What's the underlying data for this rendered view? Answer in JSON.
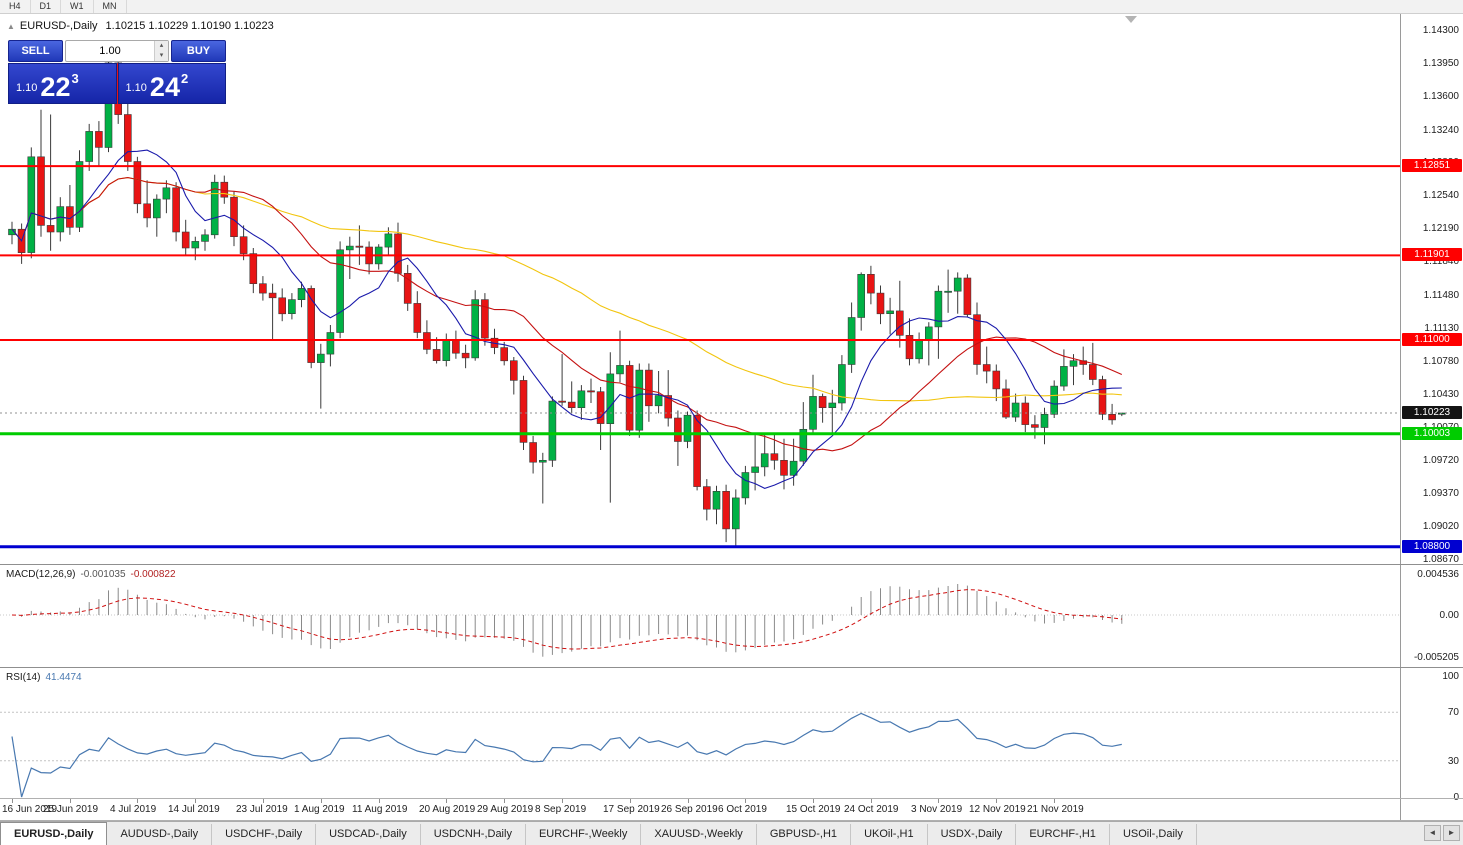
{
  "toolbar": {
    "timeframes": [
      "H4",
      "D1",
      "W1",
      "MN"
    ]
  },
  "chart_header": {
    "collapse_icon": "▲",
    "symbol": "EURUSD-,Daily",
    "ohlc": "1.10215 1.10229 1.10190 1.10223"
  },
  "trade_panel": {
    "sell_label": "SELL",
    "buy_label": "BUY",
    "volume": "1.00",
    "spinner_up_icon": "▴",
    "spinner_down_icon": "▾",
    "bid": {
      "main": "1.10",
      "big": "22",
      "pip": "3"
    },
    "ask": {
      "main": "1.10",
      "big": "24",
      "pip": "2"
    }
  },
  "macd_panel": {
    "name": "MACD(12,26,9)",
    "value_main": "-0.001035",
    "value_signal": "-0.000822",
    "axis_labels": [
      "0.004536",
      "0.00",
      "-0.005205"
    ]
  },
  "rsi_panel": {
    "name": "RSI(14)",
    "value": "41.4474",
    "axis_labels": [
      "100",
      "70",
      "30",
      "0"
    ]
  },
  "tab_bar": {
    "active_index": 0,
    "scroll_left_icon": "◄",
    "scroll_right_icon": "►",
    "tabs": [
      "EURUSD-,Daily",
      "AUDUSD-,Daily",
      "USDCHF-,Daily",
      "USDCAD-,Daily",
      "USDCNH-,Daily",
      "EURCHF-,Weekly",
      "XAUUSD-,Weekly",
      "GBPUSD-,H1",
      "UKOil-,H1",
      "USDX-,Daily",
      "EURCHF-,H1",
      "USOil-,Daily"
    ]
  },
  "chart_data": {
    "type": "candlestick",
    "symbol": "EURUSD-",
    "timeframe": "Daily",
    "colors": {
      "up": "#00b145",
      "down": "#e81414",
      "wick": "#3a3a3a",
      "ma_fast": "#1a1aab",
      "ma_mid": "#c41111",
      "ma_slow": "#f2c50f",
      "macd_hist": "#8a8a8a",
      "macd_signal": "#d01010",
      "rsi_line": "#4878b0",
      "current_line": "#909090"
    },
    "price_axis": {
      "ticks": [
        "1.14300",
        "1.13950",
        "1.13600",
        "1.13240",
        "1.12890",
        "1.12540",
        "1.12190",
        "1.11840",
        "1.11480",
        "1.11130",
        "1.10780",
        "1.10430",
        "1.10070",
        "1.09720",
        "1.09370",
        "1.09020",
        "1.08670"
      ]
    },
    "hlines": [
      {
        "value": 1.12851,
        "label": "1.12851",
        "color": "#ff0000",
        "width": 2
      },
      {
        "value": 1.11901,
        "label": "1.11901",
        "color": "#ff0000",
        "width": 2
      },
      {
        "value": 1.11,
        "label": "1.11000",
        "color": "#ff0000",
        "width": 2
      },
      {
        "value": 1.10003,
        "label": "1.10003",
        "color": "#00cc00",
        "width": 3
      },
      {
        "value": 1.088,
        "label": "1.08800",
        "color": "#0000d0",
        "width": 3
      }
    ],
    "current_price": {
      "value": 1.10223,
      "label": "1.10223"
    },
    "moving_averages": [
      {
        "period": 50,
        "color": "#f2c50f"
      },
      {
        "period": 20,
        "color": "#c41111"
      },
      {
        "period": 8,
        "color": "#1a1aab"
      }
    ],
    "macd": {
      "fast": 12,
      "slow": 26,
      "signal": 9
    },
    "rsi": {
      "period": 14,
      "levels": [
        70,
        30
      ]
    },
    "date_labels": [
      {
        "text": "16 Jun 2019",
        "index": 0
      },
      {
        "text": "25 Jun 2019",
        "index": 6
      },
      {
        "text": "4 Jul 2019",
        "index": 13
      },
      {
        "text": "14 Jul 2019",
        "index": 19
      },
      {
        "text": "23 Jul 2019",
        "index": 26
      },
      {
        "text": "1 Aug 2019",
        "index": 32
      },
      {
        "text": "11 Aug 2019",
        "index": 38
      },
      {
        "text": "20 Aug 2019",
        "index": 45
      },
      {
        "text": "29 Aug 2019",
        "index": 51
      },
      {
        "text": "8 Sep 2019",
        "index": 57
      },
      {
        "text": "17 Sep 2019",
        "index": 64
      },
      {
        "text": "26 Sep 2019",
        "index": 70
      },
      {
        "text": "6 Oct 2019",
        "index": 76
      },
      {
        "text": "15 Oct 2019",
        "index": 83
      },
      {
        "text": "24 Oct 2019",
        "index": 89
      },
      {
        "text": "3 Nov 2019",
        "index": 96
      },
      {
        "text": "12 Nov 2019",
        "index": 102
      },
      {
        "text": "21 Nov 2019",
        "index": 108
      }
    ],
    "ohlc": [
      [
        1.1212,
        1.1226,
        1.1202,
        1.1218
      ],
      [
        1.1218,
        1.1224,
        1.1181,
        1.1193
      ],
      [
        1.1193,
        1.1305,
        1.1187,
        1.1295
      ],
      [
        1.1295,
        1.1345,
        1.121,
        1.1222
      ],
      [
        1.1222,
        1.134,
        1.1195,
        1.1215
      ],
      [
        1.1215,
        1.1252,
        1.1205,
        1.1242
      ],
      [
        1.1242,
        1.1265,
        1.1212,
        1.122
      ],
      [
        1.122,
        1.1302,
        1.1215,
        1.129
      ],
      [
        1.129,
        1.133,
        1.128,
        1.1322
      ],
      [
        1.1322,
        1.1333,
        1.1285,
        1.1305
      ],
      [
        1.1305,
        1.1412,
        1.13,
        1.1395
      ],
      [
        1.1395,
        1.1407,
        1.133,
        1.134
      ],
      [
        1.134,
        1.136,
        1.128,
        1.129
      ],
      [
        1.129,
        1.1295,
        1.1235,
        1.1245
      ],
      [
        1.1245,
        1.127,
        1.122,
        1.123
      ],
      [
        1.123,
        1.1255,
        1.121,
        1.125
      ],
      [
        1.125,
        1.127,
        1.1235,
        1.1262
      ],
      [
        1.1262,
        1.1268,
        1.1205,
        1.1215
      ],
      [
        1.1215,
        1.1228,
        1.119,
        1.1198
      ],
      [
        1.1198,
        1.121,
        1.1185,
        1.1205
      ],
      [
        1.1205,
        1.1218,
        1.1195,
        1.1212
      ],
      [
        1.1212,
        1.1276,
        1.1208,
        1.1268
      ],
      [
        1.1268,
        1.1275,
        1.1245,
        1.1252
      ],
      [
        1.1252,
        1.1258,
        1.12,
        1.121
      ],
      [
        1.121,
        1.1222,
        1.1185,
        1.1192
      ],
      [
        1.1192,
        1.1198,
        1.115,
        1.116
      ],
      [
        1.116,
        1.1168,
        1.1142,
        1.115
      ],
      [
        1.115,
        1.116,
        1.1101,
        1.1145
      ],
      [
        1.1145,
        1.1155,
        1.112,
        1.1128
      ],
      [
        1.1128,
        1.115,
        1.1122,
        1.1143
      ],
      [
        1.1143,
        1.1162,
        1.1135,
        1.1155
      ],
      [
        1.1155,
        1.1158,
        1.107,
        1.1076
      ],
      [
        1.1076,
        1.1096,
        1.1027,
        1.1085
      ],
      [
        1.1085,
        1.1116,
        1.1072,
        1.1108
      ],
      [
        1.1108,
        1.1205,
        1.1102,
        1.1196
      ],
      [
        1.1196,
        1.121,
        1.1165,
        1.12
      ],
      [
        1.12,
        1.1222,
        1.118,
        1.1199
      ],
      [
        1.1199,
        1.1205,
        1.117,
        1.1181
      ],
      [
        1.1181,
        1.1202,
        1.1175,
        1.1199
      ],
      [
        1.1199,
        1.122,
        1.119,
        1.1213
      ],
      [
        1.1213,
        1.1225,
        1.1162,
        1.1171
      ],
      [
        1.1171,
        1.118,
        1.1131,
        1.1139
      ],
      [
        1.1139,
        1.1152,
        1.1102,
        1.1108
      ],
      [
        1.1108,
        1.1121,
        1.1085,
        1.109
      ],
      [
        1.109,
        1.1103,
        1.1075,
        1.1078
      ],
      [
        1.1078,
        1.1107,
        1.1072,
        1.11
      ],
      [
        1.11,
        1.111,
        1.108,
        1.1086
      ],
      [
        1.1086,
        1.1095,
        1.107,
        1.1081
      ],
      [
        1.1081,
        1.1153,
        1.1078,
        1.1143
      ],
      [
        1.1143,
        1.115,
        1.1094,
        1.1102
      ],
      [
        1.1102,
        1.1112,
        1.1085,
        1.1092
      ],
      [
        1.1092,
        1.1098,
        1.1073,
        1.1078
      ],
      [
        1.1078,
        1.1082,
        1.1042,
        1.1057
      ],
      [
        1.1057,
        1.1062,
        1.0983,
        1.0991
      ],
      [
        1.0991,
        1.0998,
        1.0958,
        1.097
      ],
      [
        1.097,
        1.098,
        1.0926,
        1.0972
      ],
      [
        1.0972,
        1.104,
        1.0965,
        1.1035
      ],
      [
        1.1035,
        1.1085,
        1.103,
        1.1034
      ],
      [
        1.1034,
        1.1056,
        1.1022,
        1.1028
      ],
      [
        1.1028,
        1.1052,
        1.1015,
        1.1046
      ],
      [
        1.1046,
        1.1059,
        1.1033,
        1.1045
      ],
      [
        1.1045,
        1.105,
        1.0983,
        1.1011
      ],
      [
        1.1011,
        1.1087,
        1.0927,
        1.1064
      ],
      [
        1.1064,
        1.111,
        1.1055,
        1.1073
      ],
      [
        1.1073,
        1.1078,
        1.0998,
        1.1004
      ],
      [
        1.1004,
        1.1075,
        1.0996,
        1.1068
      ],
      [
        1.1068,
        1.1075,
        1.1013,
        1.103
      ],
      [
        1.103,
        1.1067,
        1.1022,
        1.1041
      ],
      [
        1.1041,
        1.1068,
        1.1008,
        1.1017
      ],
      [
        1.1017,
        1.1025,
        1.0966,
        1.0992
      ],
      [
        1.0992,
        1.1024,
        1.0985,
        1.102
      ],
      [
        1.102,
        1.1025,
        1.094,
        1.0944
      ],
      [
        1.0944,
        1.0952,
        1.0908,
        1.092
      ],
      [
        1.092,
        1.0945,
        1.0904,
        1.0939
      ],
      [
        1.0939,
        1.0946,
        1.0885,
        1.0899
      ],
      [
        1.0899,
        1.0941,
        1.0879,
        1.0932
      ],
      [
        1.0932,
        1.0966,
        1.0925,
        1.0959
      ],
      [
        1.0959,
        1.0999,
        1.094,
        1.0965
      ],
      [
        1.0965,
        1.0999,
        1.0955,
        1.0979
      ],
      [
        1.0979,
        1.1,
        1.0962,
        1.0972
      ],
      [
        1.0972,
        1.0995,
        1.0941,
        1.0956
      ],
      [
        1.0956,
        1.0995,
        1.0945,
        1.0971
      ],
      [
        1.0971,
        1.1034,
        1.0966,
        1.1005
      ],
      [
        1.1005,
        1.1063,
        1.1,
        1.104
      ],
      [
        1.104,
        1.1043,
        1.1012,
        1.1028
      ],
      [
        1.1028,
        1.1047,
        1.1001,
        1.1033
      ],
      [
        1.1033,
        1.1084,
        1.1025,
        1.1074
      ],
      [
        1.1074,
        1.114,
        1.1065,
        1.1124
      ],
      [
        1.1124,
        1.1172,
        1.111,
        1.117
      ],
      [
        1.117,
        1.1179,
        1.1138,
        1.115
      ],
      [
        1.115,
        1.1158,
        1.1117,
        1.1128
      ],
      [
        1.1128,
        1.1145,
        1.1106,
        1.1131
      ],
      [
        1.1131,
        1.1163,
        1.1092,
        1.1105
      ],
      [
        1.1105,
        1.1123,
        1.1073,
        1.108
      ],
      [
        1.108,
        1.1108,
        1.1075,
        1.11
      ],
      [
        1.11,
        1.1119,
        1.1073,
        1.1114
      ],
      [
        1.1114,
        1.1158,
        1.108,
        1.1152
      ],
      [
        1.1152,
        1.1175,
        1.1129,
        1.1152
      ],
      [
        1.1152,
        1.1172,
        1.1128,
        1.1166
      ],
      [
        1.1166,
        1.117,
        1.1124,
        1.1127
      ],
      [
        1.1127,
        1.114,
        1.1063,
        1.1074
      ],
      [
        1.1074,
        1.1093,
        1.1054,
        1.1067
      ],
      [
        1.1067,
        1.1074,
        1.1035,
        1.1048
      ],
      [
        1.1048,
        1.1058,
        1.1016,
        1.1018
      ],
      [
        1.1018,
        1.1043,
        1.1013,
        1.1033
      ],
      [
        1.1033,
        1.104,
        1.1002,
        1.101
      ],
      [
        1.101,
        1.102,
        1.0995,
        1.1007
      ],
      [
        1.1007,
        1.1028,
        1.0989,
        1.1021
      ],
      [
        1.1021,
        1.1057,
        1.1017,
        1.1051
      ],
      [
        1.1051,
        1.109,
        1.1046,
        1.1072
      ],
      [
        1.1072,
        1.1085,
        1.1052,
        1.1078
      ],
      [
        1.1078,
        1.1093,
        1.1063,
        1.1074
      ],
      [
        1.1074,
        1.1097,
        1.1052,
        1.1058
      ],
      [
        1.1058,
        1.1062,
        1.1015,
        1.1021
      ],
      [
        1.1021,
        1.1032,
        1.101,
        1.1015
      ],
      [
        1.10215,
        1.10229,
        1.1019,
        1.10223
      ]
    ]
  }
}
